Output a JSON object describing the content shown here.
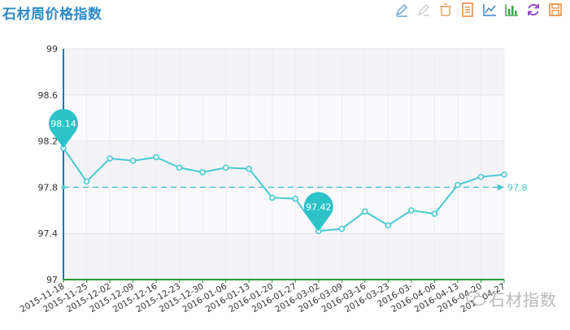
{
  "title": "石材周价格指数",
  "toolbar": {
    "icons": [
      "mark-icon",
      "erase-icon",
      "clear-icon",
      "data-view-icon",
      "line-chart-icon",
      "bar-chart-icon",
      "restore-icon",
      "save-icon"
    ]
  },
  "watermark": "石材指数",
  "colors": {
    "series": "#4ac9d1",
    "pin": "#2cc3c8",
    "x_axis": "#2e9a33",
    "y_axis": "#1f78b4",
    "title": "#2c8ac9"
  },
  "chart_data": {
    "type": "line",
    "x": [
      "2015-11-18",
      "2015-11-25",
      "2015-12-02",
      "2015-12-09",
      "2015-12-16",
      "2015-12-23",
      "2015-12-30",
      "2016-01-06",
      "2016-01-13",
      "2016-01-20",
      "2016-01-27",
      "2016-03-02",
      "2016-03-09",
      "2016-03-16",
      "2016-03-23",
      "2016-03-30",
      "2016-04-06",
      "2016-04-13",
      "2016-04-20",
      "2016-04-27"
    ],
    "x_tick_labels": [
      "2015-11-18",
      "2015-11-25",
      "2015-12-02",
      "2015-12-09",
      "2015-12-16",
      "2015-12-23",
      "2015-12-30",
      "2016-01-06",
      "2016-01-13",
      "2016-01-20",
      "2016-01-27",
      "2016-03-02",
      "2016-03-09",
      "2016-03-16",
      "2016-03-23",
      "2016-03-",
      "2016-04-06",
      "2016-04-13",
      "2016-04-20",
      "2016-04-27"
    ],
    "series": [
      {
        "values": [
          98.14,
          97.85,
          98.05,
          98.03,
          98.06,
          97.97,
          97.93,
          97.97,
          97.96,
          97.71,
          97.7,
          97.42,
          97.44,
          97.59,
          97.47,
          97.6,
          97.57,
          97.82,
          97.89,
          97.91
        ]
      }
    ],
    "ylim": [
      97,
      99
    ],
    "yticks": [
      97,
      97.4,
      97.8,
      98.2,
      98.6,
      99
    ],
    "ytick_labels": [
      "97",
      "97.4",
      "97.8",
      "98.2",
      "98.6",
      "99"
    ],
    "mark_points": [
      {
        "label": "98.14",
        "index": 0,
        "value": 98.14
      },
      {
        "label": "97.42",
        "index": 11,
        "value": 97.42
      }
    ],
    "mark_line": {
      "label": "97.8",
      "value": 97.8
    },
    "grid": true
  }
}
